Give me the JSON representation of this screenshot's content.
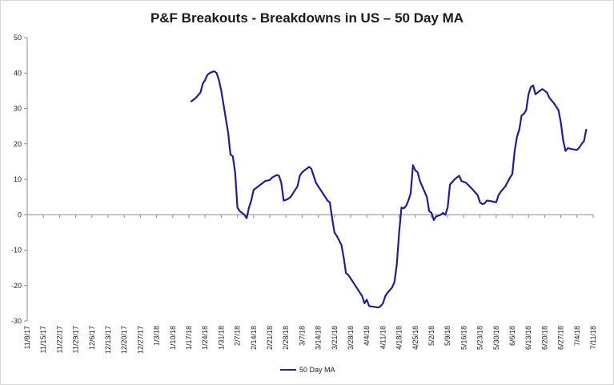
{
  "chart_data": {
    "type": "line",
    "title": "P&F Breakouts - Breakdowns in US – 50 Day MA",
    "xlabel": "",
    "ylabel": "",
    "ylim": [
      -30,
      50
    ],
    "yticks": [
      50,
      40,
      30,
      20,
      10,
      0,
      -10,
      -20,
      -30
    ],
    "xlim": [
      "11/8/17",
      "7/11/18"
    ],
    "x_tick_labels": [
      "11/8/17",
      "11/15/17",
      "11/22/17",
      "11/29/17",
      "12/6/17",
      "12/13/17",
      "12/20/17",
      "12/27/17",
      "1/3/18",
      "1/10/18",
      "1/17/18",
      "1/24/18",
      "1/31/18",
      "2/7/18",
      "2/14/18",
      "2/21/18",
      "2/28/18",
      "3/7/18",
      "3/14/18",
      "3/21/18",
      "3/28/18",
      "4/4/18",
      "4/11/18",
      "4/18/18",
      "4/25/18",
      "5/2/18",
      "5/9/18",
      "5/16/18",
      "5/23/18",
      "5/30/18",
      "6/6/18",
      "6/13/18",
      "6/20/18",
      "6/27/18",
      "7/4/18",
      "7/11/18"
    ],
    "grid": false,
    "legend_position": "bottom",
    "series": [
      {
        "name": "50 Day MA",
        "color": "#1f1f8f",
        "points": [
          [
            "1/18/18",
            32
          ],
          [
            "1/20/18",
            33
          ],
          [
            "1/22/18",
            34.5
          ],
          [
            "1/23/18",
            37
          ],
          [
            "1/24/18",
            38
          ],
          [
            "1/25/18",
            39.5
          ],
          [
            "1/26/18",
            40
          ],
          [
            "1/27/18",
            40.3
          ],
          [
            "1/28/18",
            40.5
          ],
          [
            "1/29/18",
            40
          ],
          [
            "1/30/18",
            38
          ],
          [
            "1/31/18",
            35
          ],
          [
            "2/1/18",
            31
          ],
          [
            "2/2/18",
            27
          ],
          [
            "2/3/18",
            23
          ],
          [
            "2/4/18",
            17
          ],
          [
            "2/5/18",
            16.5
          ],
          [
            "2/6/18",
            12
          ],
          [
            "2/7/18",
            2
          ],
          [
            "2/8/18",
            1
          ],
          [
            "2/9/18",
            0.5
          ],
          [
            "2/10/18",
            0
          ],
          [
            "2/11/18",
            -1
          ],
          [
            "2/12/18",
            2
          ],
          [
            "2/13/18",
            4
          ],
          [
            "2/14/18",
            7
          ],
          [
            "2/15/18",
            7.5
          ],
          [
            "2/17/18",
            8.5
          ],
          [
            "2/19/18",
            9.5
          ],
          [
            "2/21/18",
            9.8
          ],
          [
            "2/22/18",
            10.5
          ],
          [
            "2/24/18",
            11.2
          ],
          [
            "2/25/18",
            11
          ],
          [
            "2/26/18",
            9
          ],
          [
            "2/27/18",
            4
          ],
          [
            "2/28/18",
            4.2
          ],
          [
            "3/1/18",
            4.5
          ],
          [
            "3/2/18",
            5
          ],
          [
            "3/4/18",
            7
          ],
          [
            "3/5/18",
            8
          ],
          [
            "3/6/18",
            11
          ],
          [
            "3/7/18",
            12
          ],
          [
            "3/9/18",
            13
          ],
          [
            "3/10/18",
            13.5
          ],
          [
            "3/11/18",
            13
          ],
          [
            "3/12/18",
            11
          ],
          [
            "3/13/18",
            9
          ],
          [
            "3/15/18",
            7
          ],
          [
            "3/17/18",
            5
          ],
          [
            "3/18/18",
            4
          ],
          [
            "3/19/18",
            3.5
          ],
          [
            "3/20/18",
            -1
          ],
          [
            "3/21/18",
            -5
          ],
          [
            "3/22/18",
            -6
          ],
          [
            "3/24/18",
            -8.5
          ],
          [
            "3/25/18",
            -12
          ],
          [
            "3/26/18",
            -16.5
          ],
          [
            "3/27/18",
            -17
          ],
          [
            "3/29/18",
            -19
          ],
          [
            "3/31/18",
            -21
          ],
          [
            "4/2/18",
            -23
          ],
          [
            "4/3/18",
            -25
          ],
          [
            "4/4/18",
            -24
          ],
          [
            "4/5/18",
            -25.8
          ],
          [
            "4/7/18",
            -26
          ],
          [
            "4/9/18",
            -26.2
          ],
          [
            "4/10/18",
            -25.8
          ],
          [
            "4/11/18",
            -25
          ],
          [
            "4/12/18",
            -23
          ],
          [
            "4/13/18",
            -22
          ],
          [
            "4/15/18",
            -20.5
          ],
          [
            "4/16/18",
            -19
          ],
          [
            "4/17/18",
            -14
          ],
          [
            "4/18/18",
            -5
          ],
          [
            "4/19/18",
            2
          ],
          [
            "4/20/18",
            1.8
          ],
          [
            "4/21/18",
            2.5
          ],
          [
            "4/22/18",
            4
          ],
          [
            "4/23/18",
            6
          ],
          [
            "4/24/18",
            14
          ],
          [
            "4/25/18",
            12.5
          ],
          [
            "4/26/18",
            12
          ],
          [
            "4/27/18",
            9.5
          ],
          [
            "4/28/18",
            8
          ],
          [
            "4/30/18",
            5
          ],
          [
            "5/1/18",
            1
          ],
          [
            "5/2/18",
            0.5
          ],
          [
            "5/3/18",
            -1.5
          ],
          [
            "5/4/18",
            -0.5
          ],
          [
            "5/6/18",
            0
          ],
          [
            "5/7/18",
            0.5
          ],
          [
            "5/8/18",
            0
          ],
          [
            "5/9/18",
            2
          ],
          [
            "5/10/18",
            8.5
          ],
          [
            "5/12/18",
            10
          ],
          [
            "5/14/18",
            11
          ],
          [
            "5/15/18",
            9.5
          ],
          [
            "5/17/18",
            9
          ],
          [
            "5/20/18",
            7
          ],
          [
            "5/22/18",
            5.5
          ],
          [
            "5/23/18",
            3.5
          ],
          [
            "5/24/18",
            3
          ],
          [
            "5/25/18",
            3.2
          ],
          [
            "5/26/18",
            4
          ],
          [
            "5/28/18",
            3.8
          ],
          [
            "5/30/18",
            3.5
          ],
          [
            "5/31/18",
            5.5
          ],
          [
            "6/1/18",
            6.5
          ],
          [
            "6/3/18",
            8
          ],
          [
            "6/5/18",
            10.5
          ],
          [
            "6/6/18",
            11.5
          ],
          [
            "6/7/18",
            18
          ],
          [
            "6/8/18",
            22
          ],
          [
            "6/9/18",
            24
          ],
          [
            "6/10/18",
            28
          ],
          [
            "6/11/18",
            28.5
          ],
          [
            "6/12/18",
            29.5
          ],
          [
            "6/13/18",
            34
          ],
          [
            "6/14/18",
            36
          ],
          [
            "6/15/18",
            36.5
          ],
          [
            "6/16/18",
            34
          ],
          [
            "6/17/18",
            34.5
          ],
          [
            "6/18/18",
            35
          ],
          [
            "6/19/18",
            35.5
          ],
          [
            "6/20/18",
            35
          ],
          [
            "6/21/18",
            34.5
          ],
          [
            "6/22/18",
            33
          ],
          [
            "6/24/18",
            31.5
          ],
          [
            "6/26/18",
            29.5
          ],
          [
            "6/27/18",
            26
          ],
          [
            "6/28/18",
            21
          ],
          [
            "6/29/18",
            18
          ],
          [
            "6/30/18",
            18.8
          ],
          [
            "7/2/18",
            18.5
          ],
          [
            "7/4/18",
            18.3
          ],
          [
            "7/5/18",
            19
          ],
          [
            "7/6/18",
            20
          ],
          [
            "7/7/18",
            20.8
          ],
          [
            "7/8/18",
            24
          ]
        ]
      }
    ]
  }
}
